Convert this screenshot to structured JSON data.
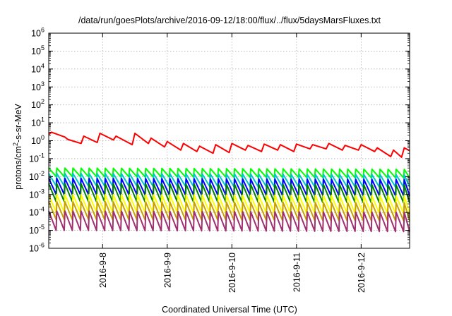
{
  "chart_data": {
    "type": "line",
    "title": "/data/run/goesPlots/archive/2016-09-12/18:00/flux/../flux/5daysMarsFluxes.txt",
    "xlabel": "Coordinated Universal Time (UTC)",
    "ylabel": {
      "prefix": "protons/cm",
      "sup": "2",
      "suffix": "-s-sr-MeV"
    },
    "y_scale": "log",
    "ylim": [
      1e-06,
      1000000.0
    ],
    "y_ticks": [
      {
        "value": 1e-06,
        "exp": "-6"
      },
      {
        "value": 1e-05,
        "exp": "-5"
      },
      {
        "value": 0.0001,
        "exp": "-4"
      },
      {
        "value": 0.001,
        "exp": "-3"
      },
      {
        "value": 0.01,
        "exp": "-2"
      },
      {
        "value": 0.1,
        "exp": "-1"
      },
      {
        "value": 1,
        "exp": "0"
      },
      {
        "value": 10,
        "exp": "1"
      },
      {
        "value": 100,
        "exp": "2"
      },
      {
        "value": 1000,
        "exp": "3"
      },
      {
        "value": 10000,
        "exp": "4"
      },
      {
        "value": 100000,
        "exp": "5"
      },
      {
        "value": 1000000,
        "exp": "6"
      }
    ],
    "y_tick_base": "10",
    "xlim": [
      "2016-09-07 04:00",
      "2016-09-12 18:00"
    ],
    "x_ticks": [
      "2016-9-8",
      "2016-9-9",
      "2016-9-10",
      "2016-9-11",
      "2016-9-12"
    ],
    "x_tick_values": [
      "2016-09-08 00:00",
      "2016-09-09 00:00",
      "2016-09-10 00:00",
      "2016-09-11 00:00",
      "2016-09-12 00:00"
    ],
    "grid": true,
    "legend": "none",
    "series": [
      {
        "color": "#ff0000",
        "x": [
          "2016-09-07 04:00",
          "2016-09-07 05:00",
          "2016-09-07 10:00",
          "2016-09-07 11:00",
          "2016-09-07 16:00",
          "2016-09-07 17:00",
          "2016-09-07 22:00",
          "2016-09-07 23:00",
          "2016-09-08 04:00",
          "2016-09-08 05:00",
          "2016-09-08 11:00",
          "2016-09-08 12:00",
          "2016-09-08 17:00",
          "2016-09-08 18:00",
          "2016-09-08 23:00",
          "2016-09-09 00:00",
          "2016-09-09 05:00",
          "2016-09-09 06:00",
          "2016-09-09 11:00",
          "2016-09-09 12:00",
          "2016-09-09 17:00",
          "2016-09-09 18:00",
          "2016-09-09 23:00",
          "2016-09-10 00:00",
          "2016-09-10 05:00",
          "2016-09-10 06:00",
          "2016-09-10 11:00",
          "2016-09-10 12:00",
          "2016-09-10 17:00",
          "2016-09-10 18:00",
          "2016-09-10 23:00",
          "2016-09-11 00:00",
          "2016-09-11 05:00",
          "2016-09-11 06:00",
          "2016-09-11 11:00",
          "2016-09-11 12:00",
          "2016-09-11 17:00",
          "2016-09-11 18:00",
          "2016-09-11 23:00",
          "2016-09-12 00:00",
          "2016-09-12 05:00",
          "2016-09-12 06:00",
          "2016-09-12 11:00",
          "2016-09-12 12:00",
          "2016-09-12 15:00",
          "2016-09-12 16:00",
          "2016-09-12 18:00"
        ],
        "y": [
          2.2,
          3.0,
          1.6,
          1.2,
          0.7,
          1.8,
          0.8,
          2.6,
          1.1,
          1.8,
          0.6,
          2.6,
          0.7,
          1.4,
          0.45,
          0.9,
          0.3,
          0.7,
          0.25,
          0.5,
          0.2,
          0.6,
          0.22,
          0.7,
          0.3,
          0.55,
          0.25,
          0.65,
          0.3,
          0.6,
          0.25,
          0.65,
          0.35,
          0.6,
          0.35,
          0.7,
          0.3,
          0.55,
          0.3,
          0.6,
          0.25,
          0.4,
          0.13,
          0.3,
          0.12,
          0.4,
          0.28
        ]
      },
      {
        "color": "#00ff00",
        "x": [
          "2016-09-07 04:00",
          "2016-09-12 18:00"
        ],
        "y": [
          0.02,
          0.015
        ],
        "sawtooth": {
          "high": 0.03,
          "low": 0.01,
          "period_hours": 3
        }
      },
      {
        "color": "#00c8c8",
        "x": [
          "2016-09-07 04:00",
          "2016-09-12 18:00"
        ],
        "y": [
          0.009,
          0.007
        ],
        "sawtooth": {
          "high": 0.015,
          "low": 0.003,
          "period_hours": 3
        }
      },
      {
        "color": "#0000ff",
        "x": [
          "2016-09-07 04:00",
          "2016-09-12 18:00"
        ],
        "y": [
          0.004,
          0.003
        ],
        "sawtooth": {
          "high": 0.008,
          "low": 0.001,
          "period_hours": 3
        }
      },
      {
        "color": "#008000",
        "x": [
          "2016-09-07 04:00",
          "2016-09-12 18:00"
        ],
        "y": [
          0.002,
          0.0015
        ],
        "sawtooth": {
          "high": 0.004,
          "low": 0.0004,
          "period_hours": 3
        }
      },
      {
        "color": "#ffff00",
        "x": [
          "2016-09-07 04:00",
          "2016-09-12 18:00"
        ],
        "y": [
          0.0005,
          0.0004
        ],
        "sawtooth": {
          "high": 0.001,
          "low": 0.0001,
          "period_hours": 3
        }
      },
      {
        "color": "#c8a000",
        "x": [
          "2016-09-07 04:00",
          "2016-09-12 18:00"
        ],
        "y": [
          0.0002,
          0.00015
        ],
        "sawtooth": {
          "high": 0.0004,
          "low": 4e-05,
          "period_hours": 3
        }
      },
      {
        "color": "#a03070",
        "x": [
          "2016-09-07 04:00",
          "2016-09-12 18:00"
        ],
        "y": [
          6e-05,
          5e-05
        ],
        "sawtooth": {
          "high": 0.00012,
          "low": 1e-05,
          "period_hours": 3
        }
      }
    ]
  }
}
